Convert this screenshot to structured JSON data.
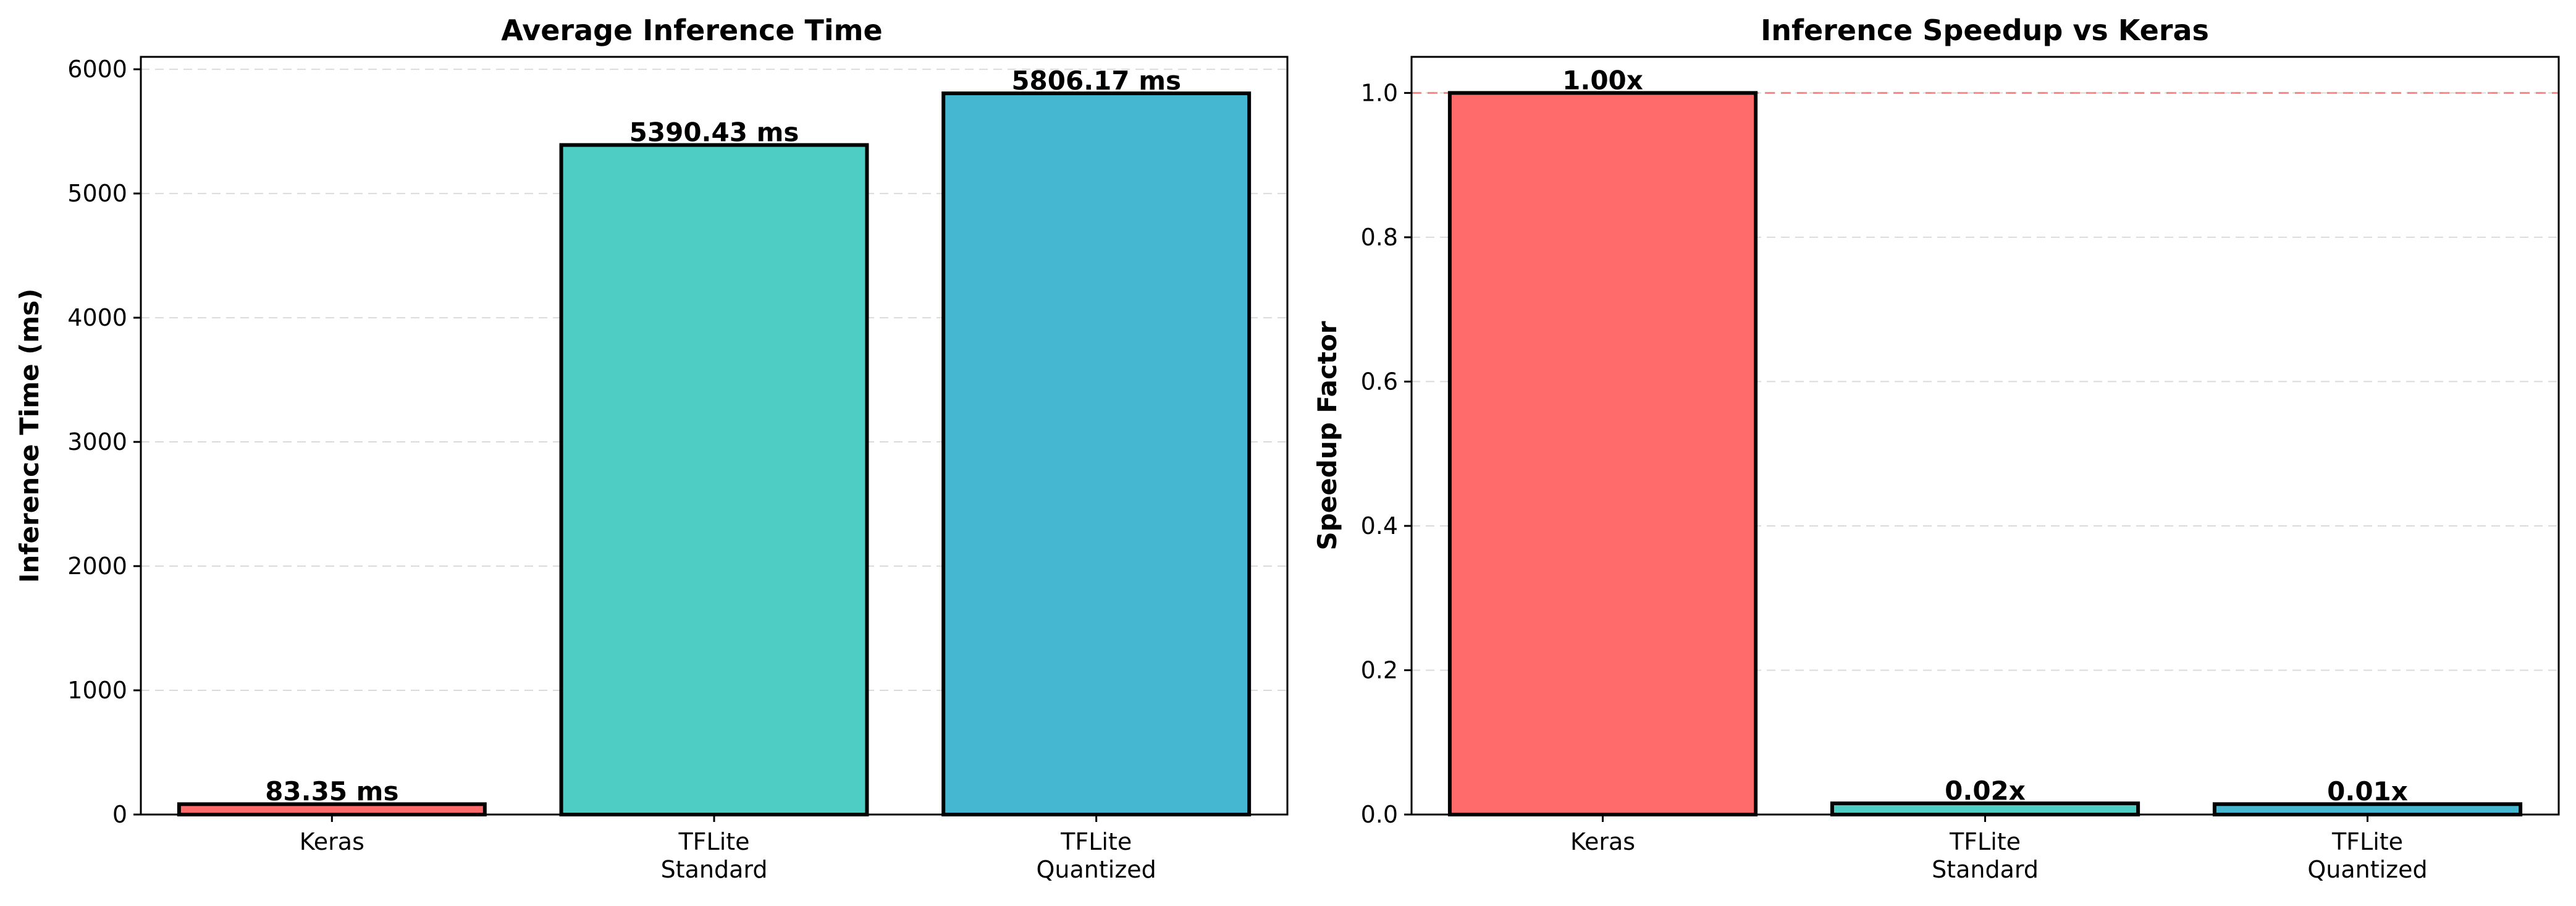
{
  "chart_data": [
    {
      "type": "bar",
      "title": "Average Inference Time",
      "xlabel": "",
      "ylabel": "Inference Time (ms)",
      "categories": [
        "Keras",
        "TFLite\nStandard",
        "TFLite\nQuantized"
      ],
      "values": [
        83.35,
        5390.43,
        5806.17
      ],
      "data_labels": [
        "83.35 ms",
        "5390.43 ms",
        "5806.17 ms"
      ],
      "colors": [
        "#ff6b6b",
        "#4ecdc4",
        "#45b7d1"
      ],
      "ylim": [
        0,
        6100
      ],
      "yticks": [
        0,
        1000,
        2000,
        3000,
        4000,
        5000,
        6000
      ],
      "ytick_labels": [
        "0",
        "1000",
        "2000",
        "3000",
        "4000",
        "5000",
        "6000"
      ],
      "grid": "y-dashed"
    },
    {
      "type": "bar",
      "title": "Inference Speedup vs Keras",
      "xlabel": "",
      "ylabel": "Speedup Factor",
      "categories": [
        "Keras",
        "TFLite\nStandard",
        "TFLite\nQuantized"
      ],
      "values": [
        1.0,
        0.0155,
        0.0144
      ],
      "data_labels": [
        "1.00x",
        "0.02x",
        "0.01x"
      ],
      "colors": [
        "#ff6b6b",
        "#4ecdc4",
        "#45b7d1"
      ],
      "ylim": [
        0,
        1.05
      ],
      "yticks": [
        0.0,
        0.2,
        0.4,
        0.6,
        0.8,
        1.0
      ],
      "ytick_labels": [
        "0.0",
        "0.2",
        "0.4",
        "0.6",
        "0.8",
        "1.0"
      ],
      "reference_line": 1.0,
      "grid": "y-dashed"
    }
  ]
}
